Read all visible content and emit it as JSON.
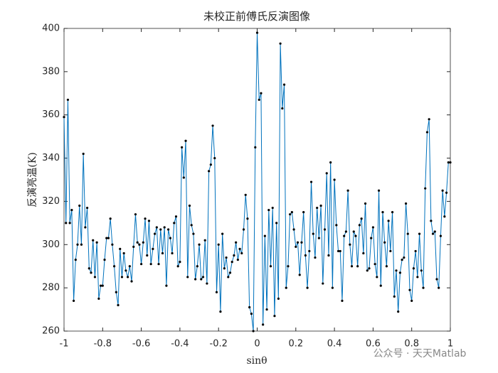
{
  "chart_data": {
    "type": "line",
    "title": "未校正前傅氏反演图像",
    "xlabel": "sinθ",
    "ylabel": "反演亮温(K)",
    "annotation": "公众号 · 天天Matlab",
    "x": [
      -1,
      -0.99,
      -0.98,
      -0.97,
      -0.96,
      -0.95,
      -0.94,
      -0.93,
      -0.92,
      -0.91,
      -0.9,
      -0.89,
      -0.88,
      -0.87,
      -0.86,
      -0.85,
      -0.84,
      -0.83,
      -0.82,
      -0.81,
      -0.8,
      -0.79,
      -0.78,
      -0.77,
      -0.76,
      -0.75,
      -0.74,
      -0.73,
      -0.72,
      -0.71,
      -0.7,
      -0.69,
      -0.68,
      -0.67,
      -0.66,
      -0.65,
      -0.64,
      -0.63,
      -0.62,
      -0.61,
      -0.6,
      -0.59,
      -0.58,
      -0.57,
      -0.56,
      -0.55,
      -0.54,
      -0.53,
      -0.52,
      -0.51,
      -0.5,
      -0.49,
      -0.48,
      -0.47,
      -0.46,
      -0.45,
      -0.44,
      -0.43,
      -0.42,
      -0.41,
      -0.4,
      -0.39,
      -0.38,
      -0.37,
      -0.36,
      -0.35,
      -0.34,
      -0.33,
      -0.32,
      -0.31,
      -0.3,
      -0.29,
      -0.28,
      -0.27,
      -0.26,
      -0.25,
      -0.24,
      -0.23,
      -0.22,
      -0.21,
      -0.2,
      -0.19,
      -0.18,
      -0.17,
      -0.16,
      -0.15,
      -0.14,
      -0.13,
      -0.12,
      -0.11,
      -0.1,
      -0.09,
      -0.08,
      -0.07,
      -0.06,
      -0.05,
      -0.04,
      -0.03,
      -0.02,
      -0.01,
      0,
      0.01,
      0.02,
      0.03,
      0.04,
      0.05,
      0.06,
      0.07,
      0.08,
      0.09,
      0.1,
      0.11,
      0.12,
      0.13,
      0.14,
      0.15,
      0.16,
      0.17,
      0.18,
      0.19,
      0.2,
      0.21,
      0.22,
      0.23,
      0.24,
      0.25,
      0.26,
      0.27,
      0.28,
      0.29,
      0.3,
      0.31,
      0.32,
      0.33,
      0.34,
      0.35,
      0.36,
      0.37,
      0.38,
      0.39,
      0.4,
      0.41,
      0.42,
      0.43,
      0.44,
      0.45,
      0.46,
      0.47,
      0.48,
      0.49,
      0.5,
      0.51,
      0.52,
      0.53,
      0.54,
      0.55,
      0.56,
      0.57,
      0.58,
      0.59,
      0.6,
      0.61,
      0.62,
      0.63,
      0.64,
      0.65,
      0.66,
      0.67,
      0.68,
      0.69,
      0.7,
      0.71,
      0.72,
      0.73,
      0.74,
      0.75,
      0.76,
      0.77,
      0.78,
      0.79,
      0.8,
      0.81,
      0.82,
      0.83,
      0.84,
      0.85,
      0.86,
      0.87,
      0.88,
      0.89,
      0.9,
      0.91,
      0.92,
      0.93,
      0.94,
      0.95,
      0.96,
      0.97,
      0.98,
      0.99,
      1
    ],
    "series": [
      {
        "color": "#0072bd",
        "marker_color": "#000000",
        "values": [
          359,
          310,
          367,
          310,
          316,
          274,
          293,
          300,
          318,
          300,
          342,
          308,
          317,
          289,
          287,
          302,
          285,
          301,
          275,
          281,
          281,
          293,
          303,
          303,
          312,
          300,
          290,
          278,
          272,
          298,
          285,
          296,
          288,
          285,
          290,
          283,
          299,
          314,
          301,
          300,
          291,
          301,
          312,
          295,
          311,
          291,
          298,
          305,
          308,
          291,
          307,
          296,
          308,
          281,
          307,
          303,
          296,
          310,
          313,
          290,
          292,
          345,
          331,
          348,
          285,
          318,
          309,
          305,
          284,
          290,
          300,
          284,
          285,
          302,
          282,
          334,
          337,
          355,
          340,
          278,
          300,
          269,
          305,
          289,
          294,
          285,
          287,
          292,
          295,
          301,
          293,
          298,
          296,
          307,
          323,
          312,
          271,
          268,
          260,
          345,
          398,
          367,
          370,
          263,
          304,
          270,
          316,
          290,
          317,
          267,
          310,
          275,
          393,
          363,
          374,
          280,
          290,
          314,
          315,
          307,
          299,
          301,
          286,
          301,
          315,
          295,
          280,
          297,
          329,
          305,
          294,
          317,
          303,
          318,
          282,
          307,
          333,
          295,
          338,
          280,
          330,
          309,
          297,
          297,
          274,
          304,
          306,
          325,
          300,
          290,
          306,
          304,
          290,
          309,
          312,
          296,
          319,
          288,
          289,
          303,
          308,
          291,
          285,
          325,
          281,
          315,
          301,
          290,
          311,
          297,
          315,
          276,
          288,
          269,
          287,
          293,
          294,
          319,
          305,
          279,
          274,
          289,
          297,
          285,
          305,
          288,
          280,
          326,
          352,
          358,
          311,
          305,
          306,
          284,
          280,
          304,
          325,
          313,
          324,
          338,
          338
        ]
      }
    ],
    "xlim": [
      -1,
      1
    ],
    "xticks": [
      -1,
      -0.8,
      -0.6,
      -0.4,
      -0.2,
      0,
      0.2,
      0.4,
      0.6,
      0.8,
      1
    ],
    "ylim": [
      260,
      400
    ],
    "yticks": [
      260,
      280,
      300,
      320,
      340,
      360,
      380,
      400
    ]
  }
}
